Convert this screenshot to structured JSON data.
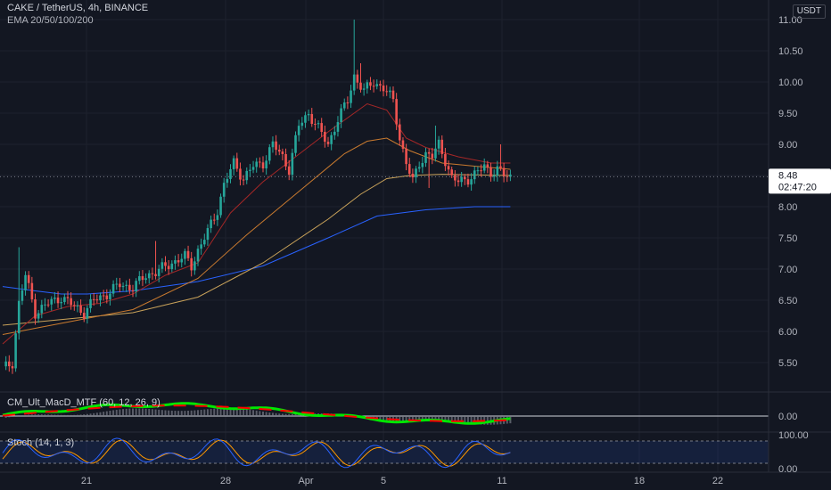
{
  "header": {
    "symbol_line": "CAKE / TetherUS, 4h, BINANCE",
    "indicator_line": "EMA 20/50/100/200",
    "currency": "USDT"
  },
  "price": {
    "last": "8.48",
    "countdown": "02:47:20"
  },
  "indicators": {
    "macd_label": "CM_Ult_MacD_MTF (60, 12, 26, 9)",
    "stoch_label": "Stoch (14, 1, 3)"
  },
  "colors": {
    "background": "#131722",
    "up": "#26a69a",
    "down": "#ef5350",
    "ema20": "#a52727",
    "ema50": "#c97a2f",
    "ema100": "#c9a25a",
    "ema200": "#2962ff",
    "stoch_k": "#2962ff",
    "stoch_d": "#ff9800",
    "macd_up": "#00e600",
    "macd_down": "#ff0000"
  },
  "chart_data": {
    "type": "candlestick",
    "y_ticks": [
      "11.00",
      "10.50",
      "10.00",
      "9.50",
      "9.00",
      "8.50",
      "8.00",
      "7.50",
      "7.00",
      "6.50",
      "6.00",
      "5.50"
    ],
    "x_ticks": [
      "21",
      "28",
      "Apr",
      "5",
      "11",
      "18",
      "22"
    ],
    "ylim": [
      5.2,
      11.3
    ],
    "waypoints": [
      [
        0,
        5.4
      ],
      [
        3,
        5.5
      ],
      [
        5,
        6.45
      ],
      [
        7,
        6.9
      ],
      [
        10,
        6.3
      ],
      [
        14,
        6.45
      ],
      [
        18,
        6.55
      ],
      [
        22,
        6.4
      ],
      [
        25,
        6.3
      ],
      [
        28,
        6.5
      ],
      [
        32,
        6.6
      ],
      [
        36,
        6.75
      ],
      [
        40,
        6.7
      ],
      [
        44,
        6.9
      ],
      [
        47,
        6.95
      ],
      [
        52,
        7.1
      ],
      [
        56,
        7.2
      ],
      [
        58,
        7.05
      ],
      [
        60,
        7.3
      ],
      [
        63,
        7.6
      ],
      [
        66,
        7.95
      ],
      [
        68,
        8.35
      ],
      [
        71,
        8.7
      ],
      [
        74,
        8.45
      ],
      [
        77,
        8.65
      ],
      [
        80,
        8.7
      ],
      [
        83,
        9.0
      ],
      [
        86,
        8.8
      ],
      [
        88,
        8.6
      ],
      [
        91,
        9.3
      ],
      [
        94,
        9.5
      ],
      [
        97,
        9.25
      ],
      [
        100,
        9.0
      ],
      [
        103,
        9.4
      ],
      [
        106,
        9.7
      ],
      [
        108,
        10.1
      ],
      [
        111,
        9.85
      ],
      [
        114,
        10.0
      ],
      [
        117,
        9.9
      ],
      [
        120,
        9.7
      ],
      [
        122,
        9.1
      ],
      [
        124,
        8.7
      ],
      [
        126,
        8.4
      ],
      [
        128,
        8.7
      ],
      [
        130,
        8.85
      ],
      [
        132,
        8.8
      ],
      [
        134,
        9.0
      ],
      [
        136,
        8.75
      ],
      [
        138,
        8.45
      ],
      [
        140,
        8.4
      ],
      [
        143,
        8.45
      ],
      [
        146,
        8.55
      ],
      [
        148,
        8.65
      ],
      [
        150,
        8.55
      ],
      [
        152,
        8.6
      ],
      [
        154,
        8.5
      ],
      [
        156,
        8.48
      ]
    ],
    "spikes": [
      {
        "index": 5,
        "high": 7.35
      },
      {
        "index": 25,
        "low": 6.15
      },
      {
        "index": 47,
        "high": 7.45
      },
      {
        "index": 108,
        "high": 11.0
      },
      {
        "index": 110,
        "high": 10.3
      },
      {
        "index": 131,
        "low": 8.3
      },
      {
        "index": 133,
        "high": 9.3
      },
      {
        "index": 153,
        "high": 9.0
      }
    ],
    "ema": {
      "ema20": [
        [
          0,
          5.8
        ],
        [
          10,
          6.25
        ],
        [
          20,
          6.4
        ],
        [
          30,
          6.45
        ],
        [
          40,
          6.6
        ],
        [
          50,
          6.9
        ],
        [
          60,
          7.1
        ],
        [
          70,
          7.9
        ],
        [
          80,
          8.4
        ],
        [
          90,
          8.8
        ],
        [
          100,
          9.2
        ],
        [
          108,
          9.5
        ],
        [
          112,
          9.65
        ],
        [
          118,
          9.55
        ],
        [
          124,
          9.1
        ],
        [
          130,
          8.95
        ],
        [
          140,
          8.8
        ],
        [
          150,
          8.7
        ],
        [
          156,
          8.7
        ]
      ],
      "ema50": [
        [
          0,
          5.95
        ],
        [
          20,
          6.15
        ],
        [
          40,
          6.35
        ],
        [
          60,
          6.85
        ],
        [
          75,
          7.55
        ],
        [
          90,
          8.2
        ],
        [
          105,
          8.85
        ],
        [
          112,
          9.05
        ],
        [
          118,
          9.1
        ],
        [
          125,
          8.9
        ],
        [
          135,
          8.7
        ],
        [
          145,
          8.65
        ],
        [
          156,
          8.6
        ]
      ],
      "ema100": [
        [
          0,
          6.1
        ],
        [
          20,
          6.2
        ],
        [
          40,
          6.3
        ],
        [
          60,
          6.55
        ],
        [
          80,
          7.1
        ],
        [
          100,
          7.8
        ],
        [
          110,
          8.2
        ],
        [
          118,
          8.45
        ],
        [
          125,
          8.5
        ],
        [
          135,
          8.52
        ],
        [
          156,
          8.5
        ]
      ],
      "ema200": [
        [
          0,
          6.72
        ],
        [
          10,
          6.65
        ],
        [
          18,
          6.6
        ],
        [
          26,
          6.6
        ],
        [
          40,
          6.65
        ],
        [
          60,
          6.8
        ],
        [
          80,
          7.05
        ],
        [
          100,
          7.5
        ],
        [
          115,
          7.85
        ],
        [
          130,
          7.95
        ],
        [
          145,
          8.0
        ],
        [
          156,
          8.0
        ]
      ]
    }
  }
}
